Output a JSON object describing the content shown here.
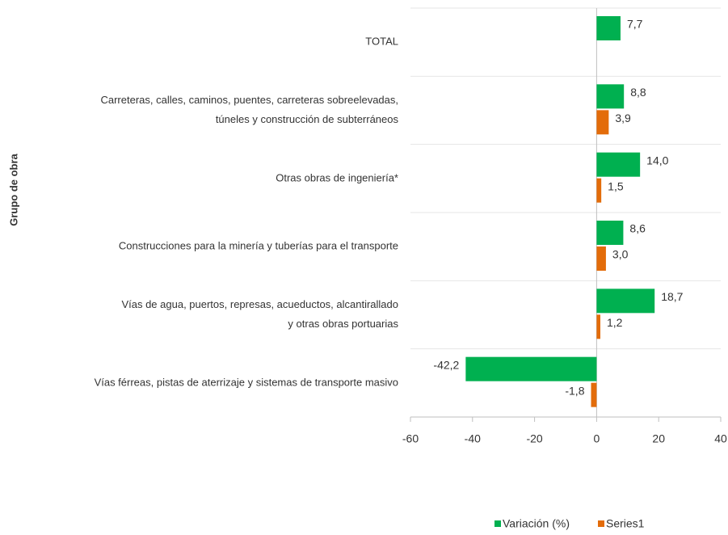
{
  "chart_data": {
    "type": "hbar",
    "y_label": "Grupo de obra",
    "categories": [
      [
        "TOTAL"
      ],
      [
        "Carreteras, calles, caminos, puentes, carreteras sobreelevadas,",
        "túneles y construcción de subterráneos"
      ],
      [
        "Otras obras de ingeniería*"
      ],
      [
        "Construcciones para la minería y tuberías para el transporte"
      ],
      [
        "Vías de agua, puertos, represas, acueductos, alcantirallado",
        "y otras obras portuarias"
      ],
      [
        "Vías férreas, pistas de aterrizaje y sistemas de transporte masivo"
      ]
    ],
    "series": [
      {
        "name": "Variación (%)",
        "color": "#00b050",
        "values": [
          7.7,
          8.8,
          14.0,
          8.6,
          18.7,
          -42.2
        ],
        "value_labels": [
          "7,7",
          "8,8",
          "14,0",
          "8,6",
          "18,7",
          "-42,2"
        ]
      },
      {
        "name": "Series1",
        "color": "#e36c0a",
        "values": [
          null,
          3.9,
          1.5,
          3.0,
          1.2,
          -1.8
        ],
        "value_labels": [
          null,
          "3,9",
          "1,5",
          "3,0",
          "1,2",
          "-1,8"
        ]
      }
    ],
    "xlim": [
      -60,
      40
    ],
    "xticks": [
      -60,
      -40,
      -20,
      0,
      20,
      40
    ],
    "grid": true,
    "legend": "bottom"
  }
}
